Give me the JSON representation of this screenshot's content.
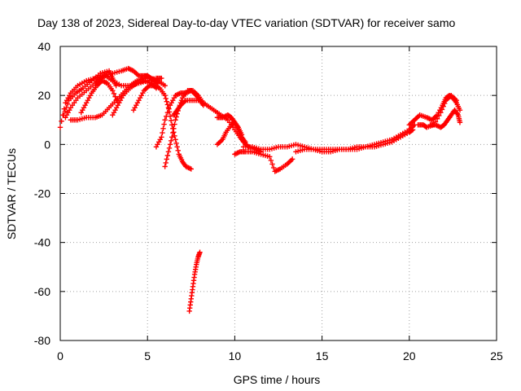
{
  "chart_data": {
    "type": "scatter",
    "title": "Day 138 of 2023, Sidereal Day-to-day VTEC variation (SDTVAR) for receiver samo",
    "xlabel": "GPS time / hours",
    "ylabel": "SDTVAR / TECUs",
    "xlim": [
      0,
      25
    ],
    "ylim": [
      -80,
      40
    ],
    "xticks": [
      0,
      5,
      10,
      15,
      20,
      25
    ],
    "yticks": [
      -80,
      -60,
      -40,
      -20,
      0,
      20,
      40
    ],
    "xtick_labels": [
      "0",
      "5",
      "10",
      "15",
      "20",
      "25"
    ],
    "ytick_labels": [
      "-80",
      "-60",
      "-40",
      "-20",
      "0",
      "20",
      "40"
    ],
    "grid": true,
    "marker": "+",
    "color": "#ff0000",
    "series": [
      {
        "name": "arc-a",
        "x": [
          0.0,
          0.3,
          0.6,
          1.0,
          1.5,
          2.0,
          2.5,
          3.0,
          3.5,
          3.9,
          4.2,
          4.5,
          4.8,
          5.0,
          5.2,
          5.4,
          5.6
        ],
        "y": [
          7,
          17,
          21,
          24,
          26,
          27,
          28,
          29,
          30,
          31,
          30,
          28,
          28,
          28,
          27,
          26,
          25
        ]
      },
      {
        "name": "arc-b",
        "x": [
          0.3,
          0.6,
          1.0,
          1.5,
          2.0,
          2.3,
          2.6,
          3.0,
          3.5,
          4.0,
          4.5,
          5.0,
          5.5,
          5.8
        ],
        "y": [
          11,
          15,
          19,
          22,
          25,
          27,
          28,
          26,
          24,
          24,
          25,
          26,
          27,
          27
        ]
      },
      {
        "name": "arc-c",
        "x": [
          0.2,
          0.5,
          0.9,
          1.3,
          1.8,
          2.3,
          2.8,
          3.0,
          3.2
        ],
        "y": [
          12,
          18,
          21,
          23,
          26,
          29,
          30,
          27,
          24
        ]
      },
      {
        "name": "arc-d",
        "x": [
          0.6,
          1.0,
          1.5,
          2.0,
          2.4,
          2.8,
          3.2,
          3.6,
          4.0,
          4.4,
          4.8,
          5.2,
          5.6,
          6.0
        ],
        "y": [
          10,
          10,
          11,
          11,
          12,
          15,
          18,
          21,
          24,
          26,
          27,
          27,
          26,
          24
        ]
      },
      {
        "name": "arc-e",
        "x": [
          1.2,
          1.5,
          1.8,
          2.1,
          2.4,
          2.7,
          3.0,
          3.3
        ],
        "y": [
          13,
          17,
          21,
          24,
          26,
          25,
          22,
          17
        ]
      },
      {
        "name": "arc-f",
        "x": [
          3.0,
          3.3,
          3.6,
          4.0,
          4.4,
          4.8,
          5.2,
          5.5
        ],
        "y": [
          12,
          16,
          20,
          23,
          25,
          26,
          25,
          23
        ]
      },
      {
        "name": "arc-g",
        "x": [
          4.2,
          4.5,
          4.8,
          5.1,
          5.4,
          5.7,
          6.0,
          6.2,
          6.4,
          6.6,
          6.8,
          7.0,
          7.2,
          7.5
        ],
        "y": [
          14,
          18,
          22,
          24,
          24,
          23,
          20,
          15,
          8,
          2,
          -4,
          -7,
          -9,
          -10
        ]
      },
      {
        "name": "arc-h",
        "x": [
          5.5,
          5.8,
          6.0,
          6.3,
          6.6,
          6.9,
          7.2,
          7.5,
          7.8,
          8.0,
          8.2
        ],
        "y": [
          -1,
          3,
          10,
          16,
          20,
          21,
          21,
          22,
          20,
          18,
          16
        ]
      },
      {
        "name": "arc-i",
        "x": [
          6.0,
          6.2,
          6.4,
          6.6,
          6.8,
          7.0,
          7.3,
          7.6,
          7.9,
          8.2
        ],
        "y": [
          -9,
          -3,
          3,
          10,
          15,
          19,
          22,
          22,
          20,
          17
        ]
      },
      {
        "name": "arc-j",
        "x": [
          6.5,
          6.7,
          6.9,
          7.2,
          7.6,
          8.0,
          8.4,
          8.8,
          9.2,
          9.6,
          10.0,
          10.3,
          10.5,
          10.8,
          11.2,
          11.5
        ],
        "y": [
          12,
          14,
          16,
          18,
          18,
          18,
          16,
          14,
          12,
          10,
          6,
          3,
          1,
          -1,
          -2,
          -3
        ]
      },
      {
        "name": "arc-k",
        "x": [
          9.0,
          9.3,
          9.6,
          9.8,
          10.0,
          10.2,
          10.4,
          10.6
        ],
        "y": [
          11,
          11,
          12,
          11,
          9,
          6,
          3,
          1
        ]
      },
      {
        "name": "arc-l",
        "x": [
          9.0,
          9.3,
          9.5,
          9.8,
          10.0,
          10.2,
          10.4
        ],
        "y": [
          0,
          2,
          5,
          8,
          9,
          7,
          4
        ]
      },
      {
        "name": "arc-m",
        "x": [
          10.0,
          10.3,
          10.6,
          11.0,
          11.5,
          12.0,
          12.3,
          12.6,
          13.0,
          13.3
        ],
        "y": [
          -4,
          -3,
          -3,
          -3,
          -4,
          -5,
          -11,
          -10,
          -8,
          -6
        ]
      },
      {
        "name": "arc-n",
        "x": [
          10.5,
          11.0,
          11.5,
          12.0,
          12.5,
          13.0,
          13.5,
          14.0,
          14.5,
          15.0,
          15.5,
          16.0,
          16.5,
          17.0,
          17.5,
          18.0,
          18.5,
          19.0,
          19.5,
          20.0,
          20.3
        ],
        "y": [
          -1,
          -1,
          -2,
          -2,
          -1,
          -1,
          0,
          -1,
          -2,
          -2,
          -2,
          -2,
          -2,
          -1,
          -1,
          0,
          1,
          2,
          4,
          6,
          8
        ]
      },
      {
        "name": "arc-o",
        "x": [
          13.5,
          14.0,
          14.5,
          15.0,
          15.5,
          16.0,
          16.5,
          17.0,
          17.5,
          18.0,
          18.5,
          19.0,
          19.5,
          20.0,
          20.2
        ],
        "y": [
          -3,
          -2,
          -2,
          -3,
          -3,
          -2,
          -2,
          -2,
          -1,
          -1,
          0,
          1,
          3,
          5,
          6
        ]
      },
      {
        "name": "arc-p",
        "x": [
          20.0,
          20.3,
          20.6,
          21.0,
          21.3,
          21.6,
          21.9,
          22.1,
          22.3,
          22.5,
          22.7,
          22.9
        ],
        "y": [
          8,
          10,
          12,
          11,
          10,
          12,
          16,
          19,
          20,
          19,
          17,
          14
        ]
      },
      {
        "name": "arc-q",
        "x": [
          20.5,
          20.8,
          21.0,
          21.4,
          21.8,
          22.1,
          22.4,
          22.7
        ],
        "y": [
          8,
          8,
          7,
          8,
          13,
          18,
          20,
          18
        ]
      },
      {
        "name": "arc-r",
        "x": [
          21.2,
          21.5,
          21.8,
          22.0,
          22.2,
          22.4,
          22.6,
          22.8,
          22.9
        ],
        "y": [
          8,
          8,
          7,
          8,
          10,
          12,
          14,
          12,
          9
        ]
      },
      {
        "name": "arc-s",
        "x": [
          7.4,
          7.5,
          7.6,
          7.7,
          7.8,
          7.9,
          8.0
        ],
        "y": [
          -68,
          -63,
          -58,
          -53,
          -49,
          -46,
          -44
        ]
      }
    ]
  }
}
